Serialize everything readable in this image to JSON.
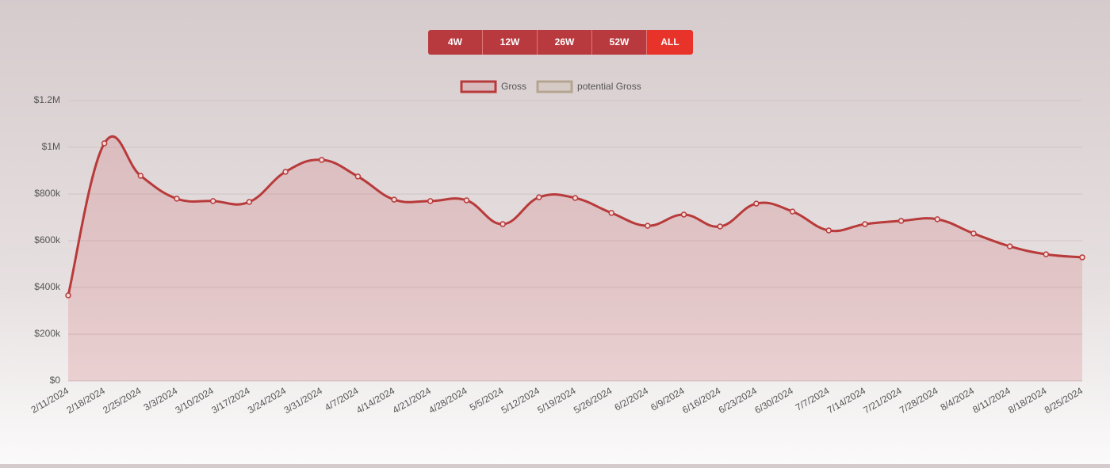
{
  "buttons": [
    {
      "label": "4W"
    },
    {
      "label": "12W"
    },
    {
      "label": "26W"
    },
    {
      "label": "52W"
    },
    {
      "label": "ALL",
      "active": true
    }
  ],
  "chart_data": {
    "type": "area",
    "categories": [
      "2/11/2024",
      "2/18/2024",
      "2/25/2024",
      "3/3/2024",
      "3/10/2024",
      "3/17/2024",
      "3/24/2024",
      "3/31/2024",
      "4/7/2024",
      "4/14/2024",
      "4/21/2024",
      "4/28/2024",
      "5/5/2024",
      "5/12/2024",
      "5/19/2024",
      "5/26/2024",
      "6/2/2024",
      "6/9/2024",
      "6/16/2024",
      "6/23/2024",
      "6/30/2024",
      "7/7/2024",
      "7/14/2024",
      "7/21/2024",
      "7/28/2024",
      "8/4/2024",
      "8/11/2024",
      "8/18/2024",
      "8/25/2024"
    ],
    "series": [
      {
        "name": "Gross",
        "color": "#b83a3a",
        "fill": "rgba(210,120,125,0.25)",
        "values": [
          366000,
          1017000,
          878000,
          780000,
          770000,
          766000,
          895000,
          946000,
          875000,
          776000,
          770000,
          773000,
          671000,
          786000,
          783000,
          719000,
          664000,
          712000,
          661000,
          759000,
          725000,
          644000,
          671000,
          685000,
          692000,
          631000,
          576000,
          542000,
          529000
        ]
      },
      {
        "name": "potential Gross",
        "color": "#b5a590",
        "fill": "rgba(200,185,160,0.25)",
        "values": [
          null,
          null,
          null,
          null,
          null,
          null,
          null,
          null,
          null,
          null,
          null,
          null,
          null,
          null,
          null,
          null,
          null,
          null,
          null,
          null,
          null,
          null,
          null,
          null,
          null,
          null,
          null,
          null,
          null
        ]
      }
    ],
    "ylim": [
      0,
      1200000
    ],
    "yticks": [
      {
        "value": 0,
        "label": "$0"
      },
      {
        "value": 200000,
        "label": "$200k"
      },
      {
        "value": 400000,
        "label": "$400k"
      },
      {
        "value": 600000,
        "label": "$600k"
      },
      {
        "value": 800000,
        "label": "$800k"
      },
      {
        "value": 1000000,
        "label": "$1M"
      },
      {
        "value": 1200000,
        "label": "$1.2M"
      }
    ],
    "grid": true,
    "legend": "top"
  }
}
